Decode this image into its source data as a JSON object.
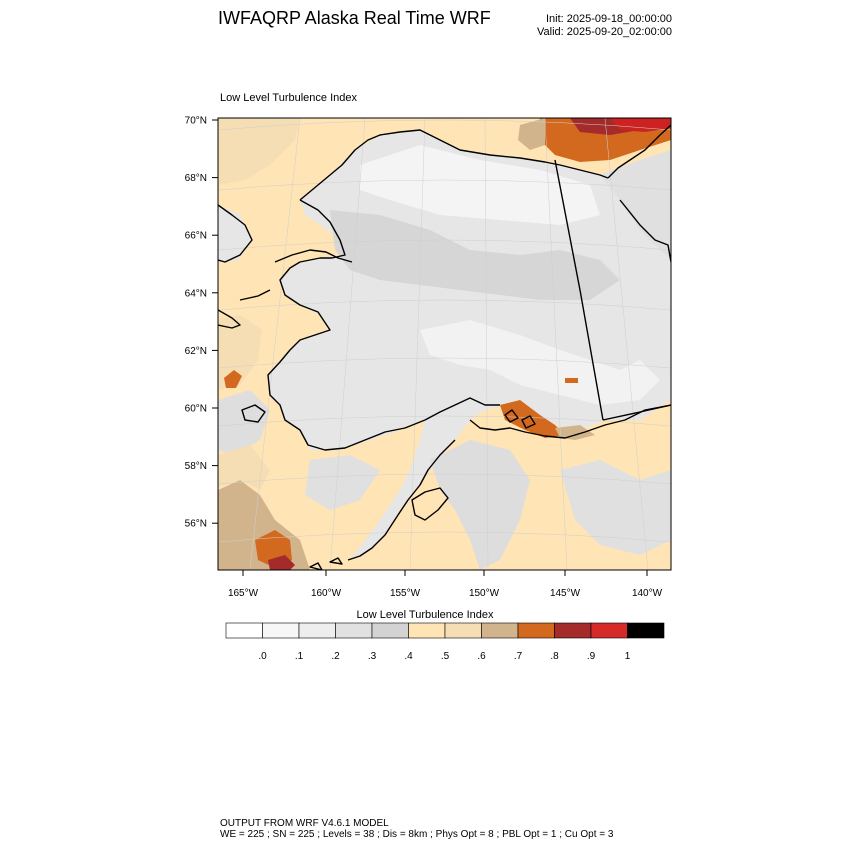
{
  "header": {
    "title": "IWFAQRP Alaska Real Time WRF",
    "init": "Init: 2025-09-18_00:00:00",
    "valid": "Valid: 2025-09-20_02:00:00"
  },
  "plot": {
    "title": "Low Level Turbulence Index",
    "lat_labels": [
      "70°N",
      "68°N",
      "66°N",
      "64°N",
      "62°N",
      "60°N",
      "58°N",
      "56°N"
    ],
    "lon_labels": [
      "165°W",
      "160°W",
      "155°W",
      "150°W",
      "145°W",
      "140°W"
    ]
  },
  "colorbar": {
    "title": "Low Level Turbulence Index",
    "tick_labels": [
      ".0",
      ".1",
      ".2",
      ".3",
      ".4",
      ".5",
      ".6",
      ".7",
      ".8",
      ".9",
      "1"
    ],
    "colors": [
      "#ffffff",
      "#f7f7f7",
      "#eeeeee",
      "#e1e1e1",
      "#d3d3d3",
      "#ffe4b5",
      "#f5deb3",
      "#d2b48c",
      "#d2691e",
      "#a52a2a",
      "#d42a2a",
      "#000000"
    ]
  },
  "field_colors": {
    "land_light": "#f2f2f2",
    "land_gray": "#dcdcdc",
    "ocean": "#ffe4b5",
    "wheat": "#f5deb3",
    "tan": "#d2b48c",
    "orange": "#d2691e",
    "brown": "#a52a2a",
    "red": "#cc2222"
  },
  "footer": {
    "line1": "OUTPUT FROM WRF V4.6.1 MODEL",
    "line2": "WE = 225 ; SN = 225 ; Levels = 38 ; Dis = 8km ; Phys Opt = 8 ; PBL Opt = 1 ; Cu Opt = 3"
  }
}
